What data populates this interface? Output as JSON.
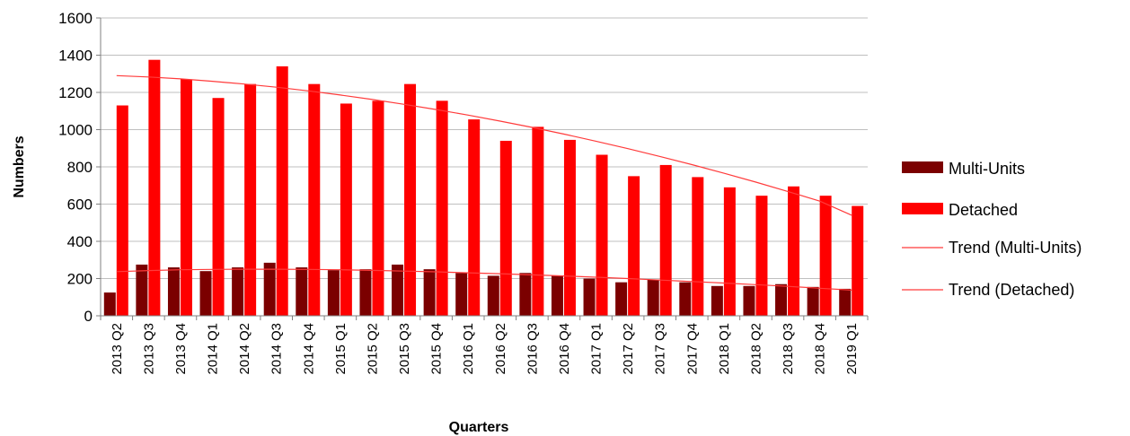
{
  "chart_data": {
    "type": "bar",
    "xlabel": "Quarters",
    "ylabel": "Numbers",
    "ylim": [
      0,
      1600
    ],
    "yticks": [
      0,
      200,
      400,
      600,
      800,
      1000,
      1200,
      1400,
      1600
    ],
    "grid": true,
    "legend_position": "right",
    "categories": [
      "2013 Q2",
      "2013 Q3",
      "2013 Q4",
      "2014 Q1",
      "2014 Q2",
      "2014 Q3",
      "2014 Q4",
      "2015 Q1",
      "2015 Q2",
      "2015 Q3",
      "2015 Q4",
      "2016 Q1",
      "2016 Q2",
      "2016 Q3",
      "2016 Q4",
      "2017 Q1",
      "2017 Q2",
      "2017 Q3",
      "2017 Q4",
      "2018 Q1",
      "2018 Q2",
      "2018 Q3",
      "2018 Q4",
      "2019 Q1"
    ],
    "series": [
      {
        "name": "Multi-Units",
        "color": "#7b0000",
        "values": [
          125,
          275,
          260,
          240,
          260,
          285,
          260,
          245,
          250,
          275,
          250,
          230,
          215,
          230,
          215,
          200,
          180,
          195,
          180,
          160,
          160,
          170,
          155,
          145
        ]
      },
      {
        "name": "Detached",
        "color": "#ff0000",
        "values": [
          1130,
          1375,
          1270,
          1170,
          1245,
          1340,
          1245,
          1140,
          1155,
          1245,
          1155,
          1055,
          940,
          1015,
          945,
          865,
          750,
          810,
          745,
          690,
          645,
          695,
          645,
          590
        ]
      }
    ],
    "trendlines": [
      {
        "name": "Trend (Multi-Units)",
        "color": "#ff3b3b",
        "values": [
          237,
          243,
          247,
          249,
          250,
          250,
          249,
          247,
          244,
          240,
          236,
          231,
          226,
          220,
          214,
          207,
          200,
          192,
          184,
          176,
          167,
          158,
          148,
          138
        ]
      },
      {
        "name": "Trend (Detached)",
        "color": "#ff3b3b",
        "values": [
          1290,
          1283,
          1273,
          1260,
          1245,
          1228,
          1208,
          1186,
          1162,
          1136,
          1108,
          1078,
          1046,
          1012,
          976,
          938,
          898,
          856,
          812,
          766,
          718,
          668,
          616,
          540
        ]
      }
    ]
  }
}
